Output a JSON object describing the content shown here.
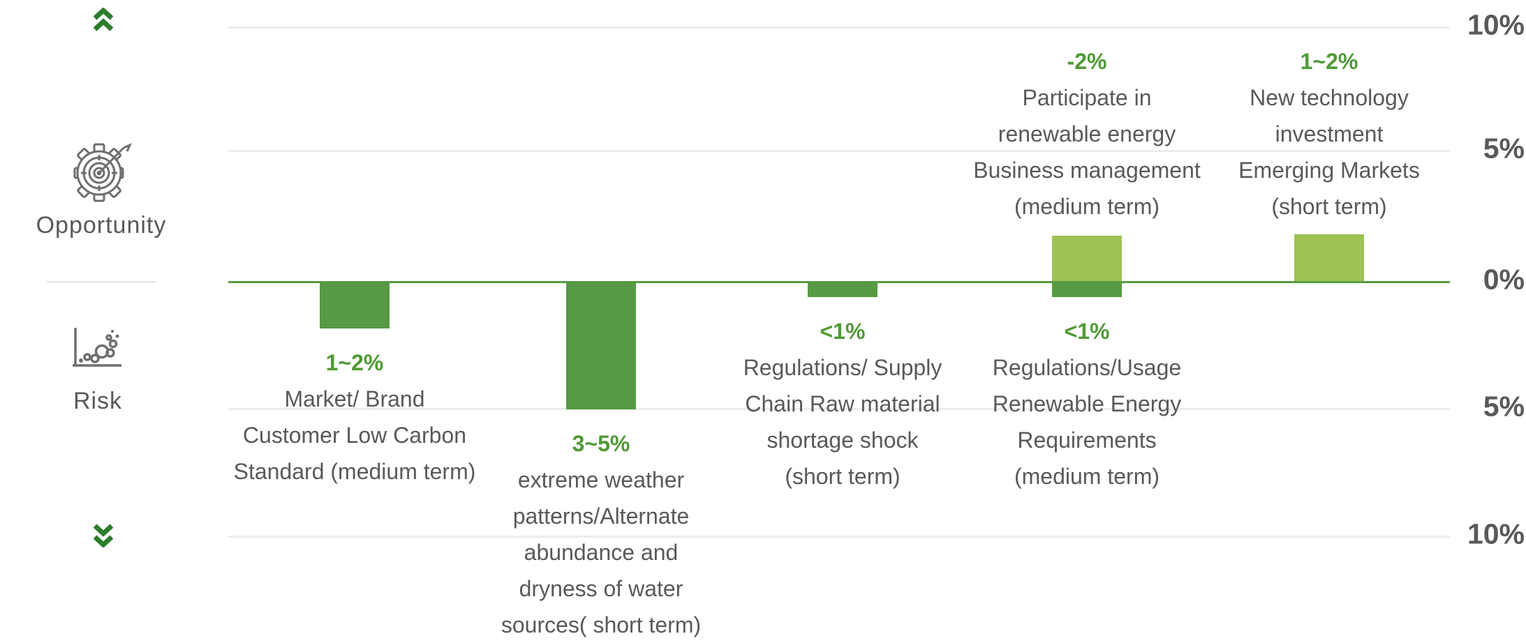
{
  "sidebar": {
    "opportunity_label": "Opportunity",
    "risk_label": "Risk"
  },
  "colors": {
    "opportunity_bar": "#9cc353",
    "risk_bar": "#579a44",
    "zero_line": "#589a41",
    "gridline": "#ececec",
    "value_text": "#4f9a35",
    "label_text": "#595959",
    "chevron_green": "#2c7d2c",
    "icon_stroke": "#6e6e6e"
  },
  "chart_data": {
    "type": "bar",
    "orientation": "vertical",
    "title": "",
    "grid": true,
    "zero_line": true,
    "y_axis": {
      "unit": "%",
      "ticks": [
        "10%",
        "5%",
        "0%",
        "5%",
        "10%"
      ],
      "tick_values": [
        10,
        5,
        0,
        -5,
        -10
      ],
      "ylim": [
        -10,
        10
      ]
    },
    "legend": {
      "opportunity": "Opportunity (bars above zero line, light green)",
      "risk": "Risk (bars below zero line, dark green)"
    },
    "categories": [
      "Market/ Brand Customer Low Carbon Standard (medium term)",
      "extreme weather patterns/Alternate abundance and dryness of water sources( short term)",
      "Regulations/ Supply Chain Raw material shortage shock (short term)",
      "Regulations/Usage Renewable Energy Requirements (medium term) + Participate in renewable energy Business management (medium term)",
      "New technology investment Emerging Markets (short term)"
    ],
    "series": [
      {
        "name": "Opportunity",
        "values": [
          0,
          0,
          0,
          1.8,
          1.85
        ],
        "value_labels": [
          null,
          null,
          null,
          "-2%",
          "1~2%"
        ]
      },
      {
        "name": "Risk",
        "values": [
          -1.85,
          -5.05,
          -0.62,
          -0.62,
          0
        ],
        "value_labels": [
          "1~2%",
          "3~5%",
          "<1%",
          "<1%",
          null
        ]
      }
    ],
    "columns": [
      {
        "risk": {
          "value_label": "1~2%",
          "bar_pct": 1.85,
          "label_lines": [
            "Market/ Brand",
            "Customer Low Carbon",
            "Standard (medium term)"
          ]
        }
      },
      {
        "risk": {
          "value_label": "3~5%",
          "bar_pct": 5.05,
          "label_lines": [
            "extreme weather",
            "patterns/Alternate",
            "abundance and",
            "dryness of water",
            "sources( short term)"
          ]
        }
      },
      {
        "risk": {
          "value_label": "<1%",
          "bar_pct": 0.62,
          "label_lines": [
            "Regulations/ Supply",
            "Chain Raw material",
            "shortage shock",
            "(short term)"
          ]
        }
      },
      {
        "opportunity": {
          "value_label": "-2%",
          "bar_pct": 1.78,
          "label_lines": [
            "Participate in",
            "renewable energy",
            "Business management",
            "(medium term)"
          ]
        },
        "risk": {
          "value_label": "<1%",
          "bar_pct": 0.62,
          "label_lines": [
            "Regulations/Usage",
            "Renewable Energy",
            "Requirements",
            "(medium term)"
          ]
        }
      },
      {
        "opportunity": {
          "value_label": "1~2%",
          "bar_pct": 1.83,
          "label_lines": [
            "New technology",
            "investment",
            "Emerging Markets",
            "(short term)"
          ]
        }
      }
    ]
  }
}
